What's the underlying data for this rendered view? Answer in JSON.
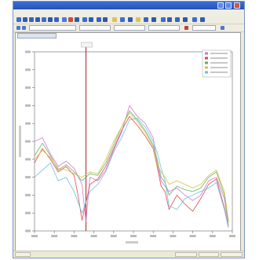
{
  "window": {
    "accent_color": "#2453b8",
    "title_icons": [
      "app-icon"
    ],
    "controls": [
      "minimize-icon",
      "maximize-icon",
      "close-icon"
    ]
  },
  "chart_data": {
    "type": "line",
    "legend_placement": "top-right",
    "grid": false,
    "xlim": [
      0,
      100
    ],
    "ylim": [
      0,
      100
    ],
    "series": [
      {
        "color": "#d070d0",
        "values": [
          [
            0,
            50
          ],
          [
            4,
            52
          ],
          [
            8,
            43
          ],
          [
            12,
            36
          ],
          [
            16,
            39
          ],
          [
            20,
            35
          ],
          [
            24,
            26
          ],
          [
            26,
            5
          ],
          [
            28,
            30
          ],
          [
            32,
            28
          ],
          [
            36,
            34
          ],
          [
            40,
            45
          ],
          [
            44,
            55
          ],
          [
            48,
            70
          ],
          [
            52,
            64
          ],
          [
            56,
            60
          ],
          [
            60,
            52
          ],
          [
            62,
            38
          ],
          [
            64,
            28
          ],
          [
            66,
            25
          ],
          [
            68,
            22
          ],
          [
            72,
            24
          ],
          [
            76,
            20
          ],
          [
            80,
            17
          ],
          [
            84,
            20
          ],
          [
            88,
            28
          ],
          [
            92,
            30
          ],
          [
            96,
            18
          ],
          [
            98,
            3
          ]
        ]
      },
      {
        "color": "#e04040",
        "values": [
          [
            0,
            38
          ],
          [
            4,
            46
          ],
          [
            8,
            40
          ],
          [
            12,
            33
          ],
          [
            16,
            36
          ],
          [
            20,
            31
          ],
          [
            22,
            20
          ],
          [
            24,
            6
          ],
          [
            28,
            26
          ],
          [
            32,
            29
          ],
          [
            36,
            36
          ],
          [
            40,
            46
          ],
          [
            44,
            56
          ],
          [
            48,
            64
          ],
          [
            52,
            59
          ],
          [
            56,
            53
          ],
          [
            60,
            46
          ],
          [
            62,
            36
          ],
          [
            64,
            25
          ],
          [
            66,
            22
          ],
          [
            68,
            12
          ],
          [
            72,
            20
          ],
          [
            76,
            15
          ],
          [
            80,
            11
          ],
          [
            84,
            18
          ],
          [
            88,
            26
          ],
          [
            92,
            29
          ],
          [
            96,
            13
          ],
          [
            98,
            2
          ]
        ]
      },
      {
        "color": "#60b060",
        "values": [
          [
            0,
            42
          ],
          [
            4,
            49
          ],
          [
            8,
            42
          ],
          [
            12,
            34
          ],
          [
            16,
            37
          ],
          [
            20,
            33
          ],
          [
            24,
            28
          ],
          [
            28,
            32
          ],
          [
            32,
            31
          ],
          [
            36,
            38
          ],
          [
            40,
            48
          ],
          [
            44,
            58
          ],
          [
            48,
            67
          ],
          [
            52,
            62
          ],
          [
            56,
            56
          ],
          [
            60,
            48
          ],
          [
            62,
            40
          ],
          [
            64,
            30
          ],
          [
            66,
            27
          ],
          [
            68,
            20
          ],
          [
            72,
            25
          ],
          [
            76,
            23
          ],
          [
            80,
            22
          ],
          [
            84,
            24
          ],
          [
            88,
            30
          ],
          [
            92,
            33
          ],
          [
            96,
            20
          ],
          [
            98,
            5
          ]
        ]
      },
      {
        "color": "#d8c040",
        "values": [
          [
            0,
            40
          ],
          [
            4,
            45
          ],
          [
            8,
            41
          ],
          [
            12,
            35
          ],
          [
            16,
            34
          ],
          [
            20,
            32
          ],
          [
            24,
            30
          ],
          [
            28,
            33
          ],
          [
            32,
            32
          ],
          [
            36,
            40
          ],
          [
            40,
            50
          ],
          [
            44,
            58
          ],
          [
            48,
            66
          ],
          [
            52,
            61
          ],
          [
            56,
            55
          ],
          [
            60,
            47
          ],
          [
            62,
            37
          ],
          [
            64,
            33
          ],
          [
            66,
            30
          ],
          [
            68,
            26
          ],
          [
            72,
            28
          ],
          [
            76,
            26
          ],
          [
            80,
            24
          ],
          [
            84,
            26
          ],
          [
            88,
            31
          ],
          [
            92,
            34
          ],
          [
            96,
            22
          ],
          [
            98,
            6
          ]
        ]
      },
      {
        "color": "#60c0e0",
        "values": [
          [
            0,
            30
          ],
          [
            4,
            34
          ],
          [
            8,
            38
          ],
          [
            12,
            28
          ],
          [
            16,
            30
          ],
          [
            20,
            22
          ],
          [
            24,
            10
          ],
          [
            28,
            22
          ],
          [
            32,
            26
          ],
          [
            36,
            33
          ],
          [
            40,
            44
          ],
          [
            44,
            52
          ],
          [
            48,
            62
          ],
          [
            52,
            63
          ],
          [
            56,
            58
          ],
          [
            60,
            50
          ],
          [
            62,
            44
          ],
          [
            64,
            35
          ],
          [
            66,
            28
          ],
          [
            68,
            14
          ],
          [
            72,
            12
          ],
          [
            76,
            18
          ],
          [
            80,
            20
          ],
          [
            84,
            22
          ],
          [
            88,
            24
          ],
          [
            92,
            27
          ],
          [
            96,
            12
          ],
          [
            98,
            2
          ]
        ]
      }
    ],
    "vertical_marker_x": 26,
    "marker_color": "#b04040"
  }
}
